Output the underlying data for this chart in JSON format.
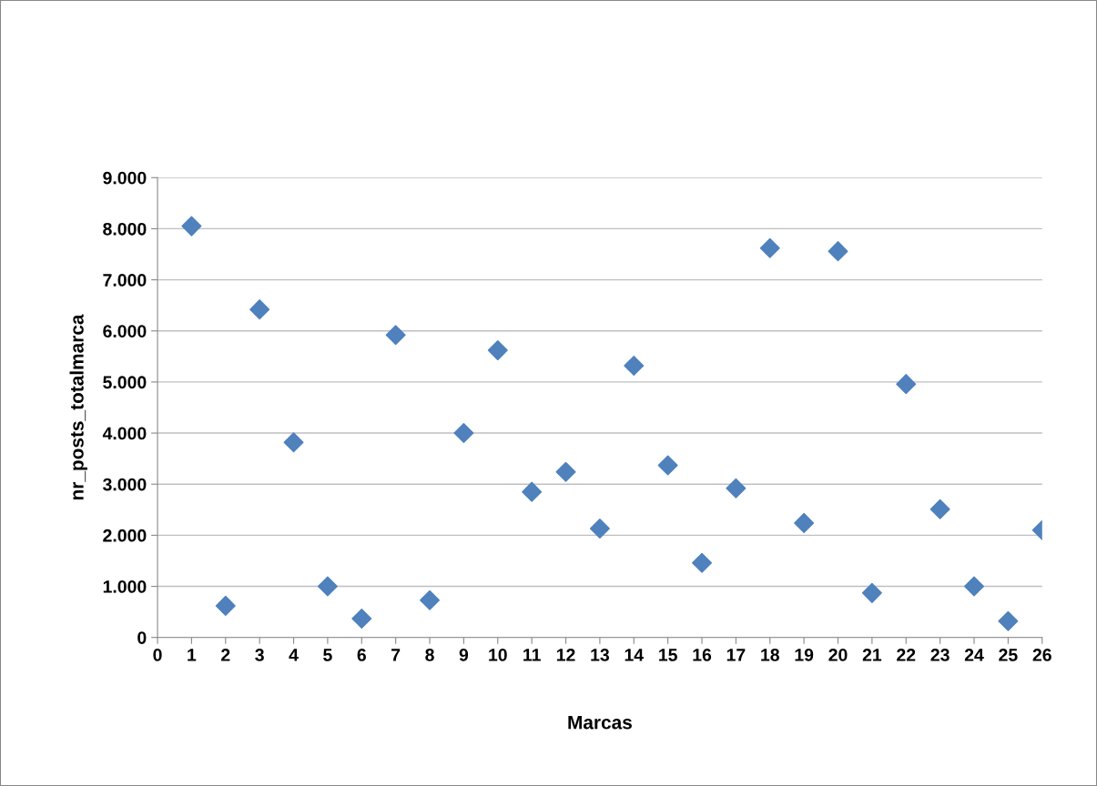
{
  "chart_data": {
    "type": "scatter",
    "xlabel": "Marcas",
    "ylabel": "nr_posts_totalmarca",
    "x": [
      1,
      2,
      3,
      4,
      5,
      6,
      7,
      8,
      9,
      10,
      11,
      12,
      13,
      14,
      15,
      16,
      17,
      18,
      19,
      20,
      21,
      22,
      23,
      24,
      25,
      26
    ],
    "series": [
      {
        "color": "#4f81bd",
        "values": [
          8050,
          620,
          6420,
          3820,
          1000,
          370,
          5920,
          730,
          4000,
          5620,
          2850,
          3240,
          2130,
          5320,
          3370,
          1460,
          2920,
          7620,
          2240,
          7560,
          870,
          4960,
          2510,
          1000,
          320,
          2100
        ]
      }
    ],
    "marker": "diamond",
    "grid": "y",
    "xlim": [
      0,
      26
    ],
    "xticks": [
      0,
      1,
      2,
      3,
      4,
      5,
      6,
      7,
      8,
      9,
      10,
      11,
      12,
      13,
      14,
      15,
      16,
      17,
      18,
      19,
      20,
      21,
      22,
      23,
      24,
      25,
      26
    ],
    "ylim": [
      0,
      9000
    ],
    "yticks": [
      {
        "value": 0,
        "label": "0"
      },
      {
        "value": 1000,
        "label": "1.000"
      },
      {
        "value": 2000,
        "label": "2.000"
      },
      {
        "value": 3000,
        "label": "3.000"
      },
      {
        "value": 4000,
        "label": "4.000"
      },
      {
        "value": 5000,
        "label": "5.000"
      },
      {
        "value": 6000,
        "label": "6.000"
      },
      {
        "value": 7000,
        "label": "7.000"
      },
      {
        "value": 8000,
        "label": "8.000"
      },
      {
        "value": 9000,
        "label": "9.000"
      }
    ]
  }
}
